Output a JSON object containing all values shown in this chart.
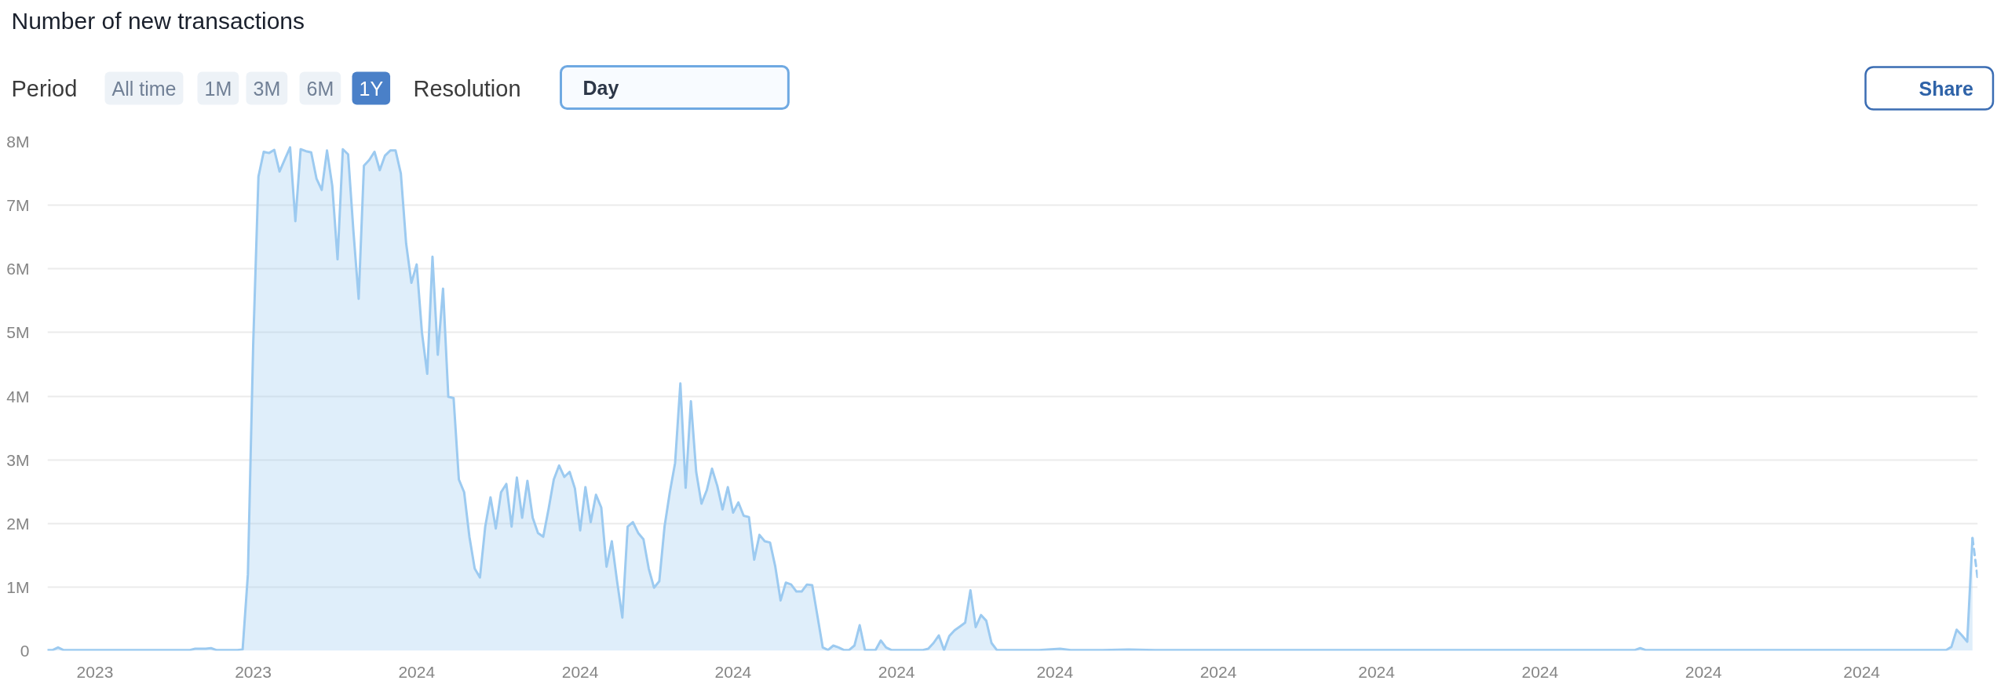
{
  "chart_data": {
    "type": "area",
    "title": "Number of new transactions",
    "annotations": [
      "Period",
      "All time",
      "1M",
      "3M",
      "6M",
      "1Y",
      "Resolution",
      "Day",
      "Share"
    ],
    "x": [
      "2023-10-23",
      "2023-10-24",
      "2023-10-25",
      "2023-10-26",
      "2023-10-27",
      "2023-10-31",
      "2023-11-04",
      "2023-11-08",
      "2023-11-12",
      "2023-11-16",
      "2023-11-19",
      "2023-11-20",
      "2023-11-21",
      "2023-11-22",
      "2023-11-23",
      "2023-11-24",
      "2023-11-26",
      "2023-11-28",
      "2023-11-29",
      "2023-11-30",
      "2023-12-01",
      "2023-12-02",
      "2023-12-03",
      "2023-12-04",
      "2023-12-05",
      "2023-12-06",
      "2023-12-07",
      "2023-12-08",
      "2023-12-09",
      "2023-12-10",
      "2023-12-11",
      "2023-12-12",
      "2023-12-13",
      "2023-12-14",
      "2023-12-15",
      "2023-12-16",
      "2023-12-17",
      "2023-12-18",
      "2023-12-19",
      "2023-12-20",
      "2023-12-21",
      "2023-12-22",
      "2023-12-23",
      "2023-12-24",
      "2023-12-25",
      "2023-12-26",
      "2023-12-27",
      "2023-12-28",
      "2023-12-29",
      "2023-12-30",
      "2023-12-31",
      "2024-01-01",
      "2024-01-02",
      "2024-01-03",
      "2024-01-04",
      "2024-01-05",
      "2024-01-06",
      "2024-01-07",
      "2024-01-08",
      "2024-01-09",
      "2024-01-10",
      "2024-01-11",
      "2024-01-12",
      "2024-01-13",
      "2024-01-14",
      "2024-01-15",
      "2024-01-16",
      "2024-01-17",
      "2024-01-18",
      "2024-01-19",
      "2024-01-20",
      "2024-01-21",
      "2024-01-22",
      "2024-01-23",
      "2024-01-24",
      "2024-01-25",
      "2024-01-26",
      "2024-01-27",
      "2024-01-28",
      "2024-01-29",
      "2024-01-30",
      "2024-01-31",
      "2024-02-01",
      "2024-02-02",
      "2024-02-03",
      "2024-02-04",
      "2024-02-05",
      "2024-02-06",
      "2024-02-07",
      "2024-02-08",
      "2024-02-09",
      "2024-02-10",
      "2024-02-11",
      "2024-02-12",
      "2024-02-13",
      "2024-02-14",
      "2024-02-15",
      "2024-02-16",
      "2024-02-17",
      "2024-02-18",
      "2024-02-19",
      "2024-02-20",
      "2024-02-21",
      "2024-02-22",
      "2024-02-23",
      "2024-02-24",
      "2024-02-25",
      "2024-02-26",
      "2024-02-27",
      "2024-02-28",
      "2024-02-29",
      "2024-03-01",
      "2024-03-02",
      "2024-03-03",
      "2024-03-04",
      "2024-03-05",
      "2024-03-06",
      "2024-03-07",
      "2024-03-08",
      "2024-03-09",
      "2024-03-10",
      "2024-03-11",
      "2024-03-12",
      "2024-03-13",
      "2024-03-14",
      "2024-03-15",
      "2024-03-16",
      "2024-03-17",
      "2024-03-18",
      "2024-03-19",
      "2024-03-20",
      "2024-03-21",
      "2024-03-22",
      "2024-03-23",
      "2024-03-24",
      "2024-03-25",
      "2024-03-26",
      "2024-03-27",
      "2024-03-28",
      "2024-03-29",
      "2024-03-30",
      "2024-03-31",
      "2024-04-03",
      "2024-04-06",
      "2024-04-07",
      "2024-04-08",
      "2024-04-09",
      "2024-04-10",
      "2024-04-11",
      "2024-04-12",
      "2024-04-13",
      "2024-04-14",
      "2024-04-15",
      "2024-04-16",
      "2024-04-17",
      "2024-04-18",
      "2024-04-19",
      "2024-04-20",
      "2024-04-26",
      "2024-04-28",
      "2024-05-02",
      "2024-05-04",
      "2024-05-10",
      "2024-05-15",
      "2024-05-20",
      "2024-05-26",
      "2024-06-01",
      "2024-06-07",
      "2024-06-13",
      "2024-06-19",
      "2024-06-22",
      "2024-06-27",
      "2024-07-03",
      "2024-07-09",
      "2024-07-15",
      "2024-07-21",
      "2024-07-27",
      "2024-08-02",
      "2024-08-08",
      "2024-08-14",
      "2024-08-19",
      "2024-08-20",
      "2024-08-21",
      "2024-08-27",
      "2024-09-02",
      "2024-09-08",
      "2024-09-14",
      "2024-09-20",
      "2024-09-26",
      "2024-10-02",
      "2024-10-08",
      "2024-10-14",
      "2024-10-17",
      "2024-10-18",
      "2024-10-19",
      "2024-10-20",
      "2024-10-21",
      "2024-10-22"
    ],
    "series": [
      {
        "color": "#9ccaf0",
        "values": [
          10000,
          10000,
          50000,
          10000,
          10000,
          10000,
          10000,
          10000,
          10000,
          10000,
          10000,
          30000,
          30000,
          30000,
          40000,
          10000,
          10000,
          10000,
          20000,
          1200000,
          4800000,
          7450000,
          7840000,
          7820000,
          7870000,
          7530000,
          7720000,
          7910000,
          6750000,
          7880000,
          7850000,
          7830000,
          7420000,
          7240000,
          7860000,
          7300000,
          6150000,
          7880000,
          7800000,
          6600000,
          5530000,
          7620000,
          7710000,
          7840000,
          7550000,
          7780000,
          7860000,
          7860000,
          7500000,
          6400000,
          5780000,
          6070000,
          5000000,
          4350000,
          6190000,
          4650000,
          5690000,
          3990000,
          3970000,
          2690000,
          2490000,
          1790000,
          1290000,
          1150000,
          1950000,
          2410000,
          1920000,
          2490000,
          2620000,
          1950000,
          2720000,
          2090000,
          2670000,
          2090000,
          1850000,
          1790000,
          2220000,
          2690000,
          2910000,
          2730000,
          2810000,
          2550000,
          1890000,
          2570000,
          2020000,
          2450000,
          2250000,
          1320000,
          1720000,
          1090000,
          520000,
          1950000,
          2020000,
          1850000,
          1750000,
          1290000,
          990000,
          1090000,
          1950000,
          2490000,
          2950000,
          4200000,
          2560000,
          3920000,
          2810000,
          2310000,
          2520000,
          2860000,
          2590000,
          2220000,
          2570000,
          2170000,
          2330000,
          2120000,
          2100000,
          1430000,
          1820000,
          1720000,
          1700000,
          1320000,
          790000,
          1070000,
          1040000,
          930000,
          930000,
          1040000,
          1030000,
          540000,
          50000,
          10000,
          80000,
          50000,
          10000,
          10000,
          80000,
          400000,
          10000,
          10000,
          10000,
          160000,
          50000,
          10000,
          10000,
          10000,
          30000,
          120000,
          240000,
          10000,
          230000,
          320000,
          380000,
          440000,
          950000,
          370000,
          560000,
          470000,
          120000,
          10000,
          10000,
          10000,
          30000,
          10000,
          10000,
          20000,
          10000,
          10000,
          10000,
          10000,
          10000,
          10000,
          10000,
          10000,
          10000,
          10000,
          10000,
          10000,
          10000,
          10000,
          10000,
          10000,
          10000,
          40000,
          10000,
          10000,
          10000,
          10000,
          10000,
          10000,
          10000,
          10000,
          10000,
          10000,
          10000,
          60000,
          330000,
          240000,
          140000,
          1770000
        ]
      },
      {
        "type": "line",
        "color": "#9ccaf0",
        "line_style": "dashed",
        "x": [
          "2024-10-22",
          "2024-10-23"
        ],
        "values": [
          1770000,
          1120000
        ]
      }
    ],
    "xlim": [
      "2023-10-23",
      "2024-10-23"
    ],
    "xticks": [
      {
        "value": "2023-11-01",
        "label": "2023"
      },
      {
        "value": "2023-12-01",
        "label": "2023"
      },
      {
        "value": "2024-01-01",
        "label": "2024"
      },
      {
        "value": "2024-02-01",
        "label": "2024"
      },
      {
        "value": "2024-03-01",
        "label": "2024"
      },
      {
        "value": "2024-04-01",
        "label": "2024"
      },
      {
        "value": "2024-05-01",
        "label": "2024"
      },
      {
        "value": "2024-06-01",
        "label": "2024"
      },
      {
        "value": "2024-07-01",
        "label": "2024"
      },
      {
        "value": "2024-08-01",
        "label": "2024"
      },
      {
        "value": "2024-09-01",
        "label": "2024"
      },
      {
        "value": "2024-10-01",
        "label": "2024"
      }
    ],
    "ylim": [
      0,
      8000000
    ],
    "yticks": [
      0,
      {
        "value": 1000000,
        "label": "1M"
      },
      {
        "value": 2000000,
        "label": "2M"
      },
      {
        "value": 3000000,
        "label": "3M"
      },
      {
        "value": 4000000,
        "label": "4M"
      },
      {
        "value": 5000000,
        "label": "5M"
      },
      {
        "value": 6000000,
        "label": "6M"
      },
      {
        "value": 7000000,
        "label": "7M"
      },
      {
        "value": 8000000,
        "label": "8M"
      }
    ],
    "grid": "y"
  }
}
